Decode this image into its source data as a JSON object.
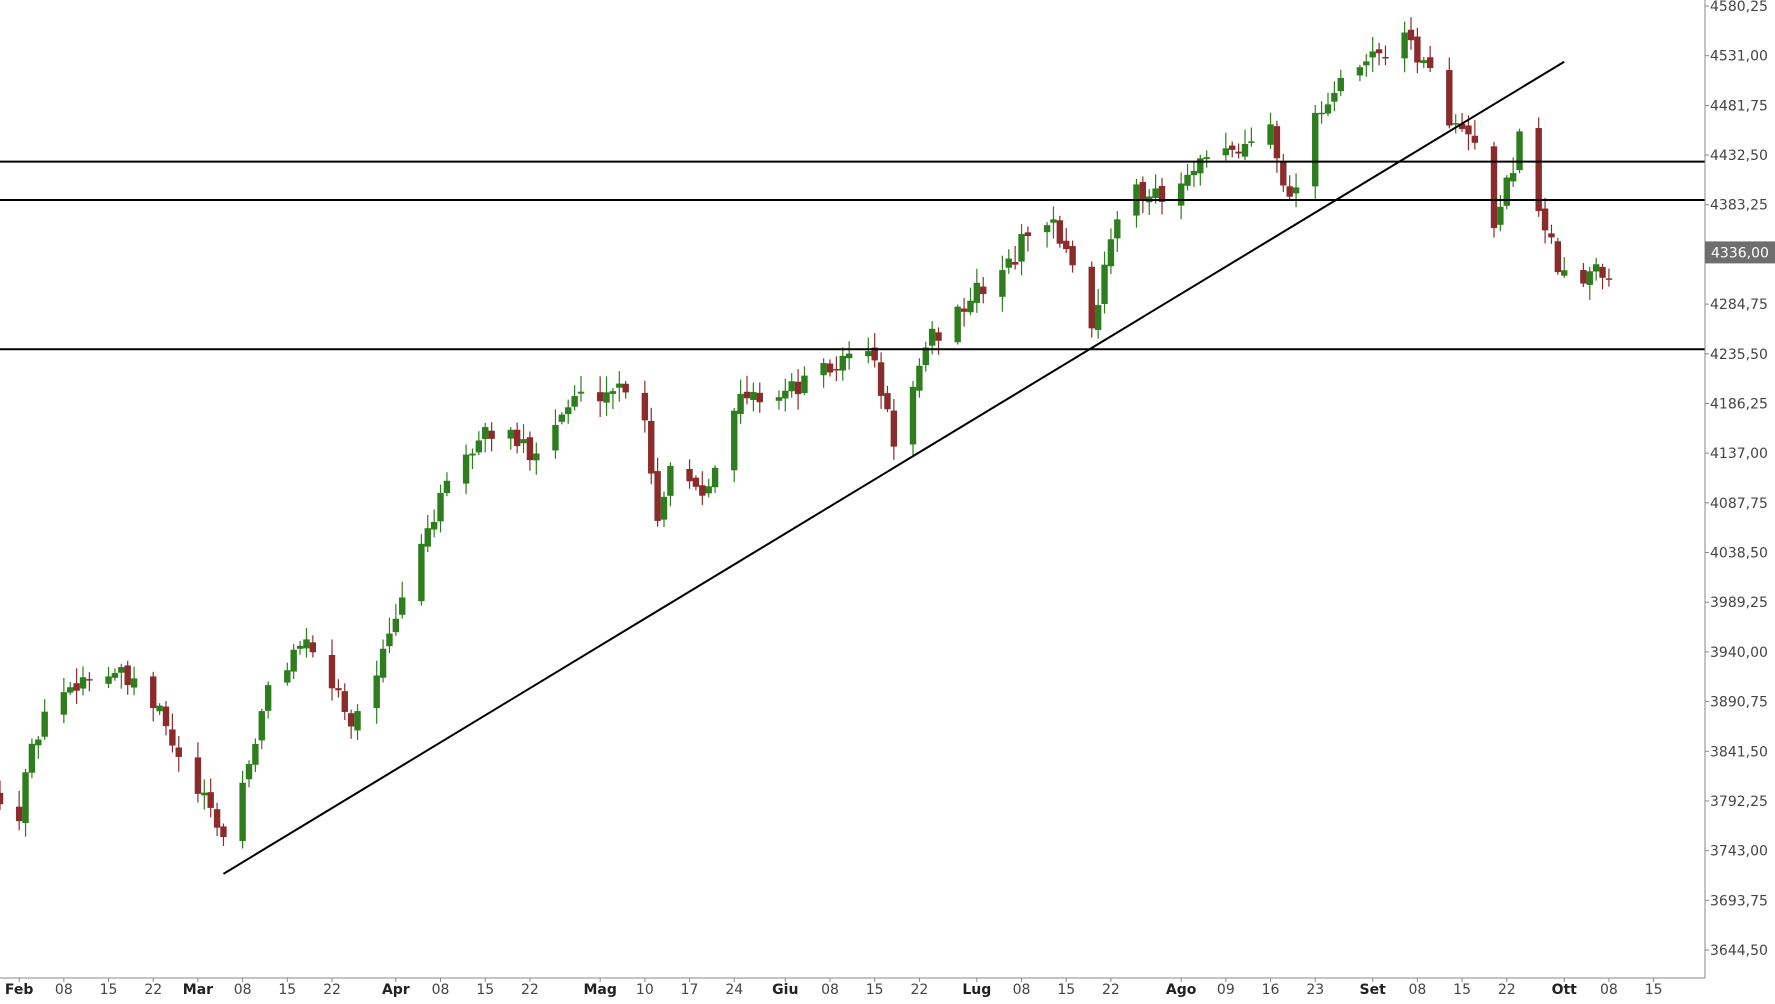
{
  "chart_data": {
    "type": "candlestick",
    "title": "",
    "xlabel": "",
    "ylabel": "",
    "y_axis_position": "right",
    "ylim": [
      3620,
      4580.25
    ],
    "y_ticks": [
      "4580,25",
      "4531,00",
      "4481,75",
      "4432,50",
      "4383,25",
      "4336,00",
      "4284,75",
      "4235,50",
      "4186,25",
      "4137,00",
      "4087,75",
      "4038,50",
      "3989,25",
      "3940,00",
      "3890,75",
      "3841,50",
      "3792,25",
      "3743,00",
      "3693,75",
      "3644,50"
    ],
    "y_tick_values": [
      4580.25,
      4531.0,
      4481.75,
      4432.5,
      4383.25,
      4336.0,
      4284.75,
      4235.5,
      4186.25,
      4137.0,
      4087.75,
      4038.5,
      3989.25,
      3940.0,
      3890.75,
      3841.5,
      3792.25,
      3743.0,
      3693.75,
      3644.5
    ],
    "current_price_label": "4336,00",
    "current_price_value": 4336.0,
    "x_start": "2021-01-29",
    "x_end": "2021-10-16",
    "x_ticks": [
      {
        "label": "Feb",
        "date": "2021-02-01",
        "month": true
      },
      {
        "label": "08",
        "date": "2021-02-08"
      },
      {
        "label": "15",
        "date": "2021-02-15"
      },
      {
        "label": "22",
        "date": "2021-02-22"
      },
      {
        "label": "Mar",
        "date": "2021-03-01",
        "month": true
      },
      {
        "label": "08",
        "date": "2021-03-08"
      },
      {
        "label": "15",
        "date": "2021-03-15"
      },
      {
        "label": "22",
        "date": "2021-03-22"
      },
      {
        "label": "Apr",
        "date": "2021-04-01",
        "month": true
      },
      {
        "label": "08",
        "date": "2021-04-08"
      },
      {
        "label": "15",
        "date": "2021-04-15"
      },
      {
        "label": "22",
        "date": "2021-04-22"
      },
      {
        "label": "Mag",
        "date": "2021-05-03",
        "month": true
      },
      {
        "label": "10",
        "date": "2021-05-10"
      },
      {
        "label": "17",
        "date": "2021-05-17"
      },
      {
        "label": "24",
        "date": "2021-05-24"
      },
      {
        "label": "Giu",
        "date": "2021-06-01",
        "month": true
      },
      {
        "label": "08",
        "date": "2021-06-08"
      },
      {
        "label": "15",
        "date": "2021-06-15"
      },
      {
        "label": "22",
        "date": "2021-06-22"
      },
      {
        "label": "Lug",
        "date": "2021-07-01",
        "month": true
      },
      {
        "label": "08",
        "date": "2021-07-08"
      },
      {
        "label": "15",
        "date": "2021-07-15"
      },
      {
        "label": "22",
        "date": "2021-07-22"
      },
      {
        "label": "Ago",
        "date": "2021-08-02",
        "month": true
      },
      {
        "label": "09",
        "date": "2021-08-09"
      },
      {
        "label": "16",
        "date": "2021-08-16"
      },
      {
        "label": "23",
        "date": "2021-08-23"
      },
      {
        "label": "Set",
        "date": "2021-09-01",
        "month": true
      },
      {
        "label": "08",
        "date": "2021-09-08"
      },
      {
        "label": "15",
        "date": "2021-09-15"
      },
      {
        "label": "22",
        "date": "2021-09-22"
      },
      {
        "label": "Ott",
        "date": "2021-10-01",
        "month": true
      },
      {
        "label": "08",
        "date": "2021-10-08"
      },
      {
        "label": "15",
        "date": "2021-10-15"
      }
    ],
    "colors": {
      "up": "#2e7d1e",
      "down": "#8b2c2c",
      "line": "#000000",
      "axis": "#888888",
      "price_tag": "#6e6e6e",
      "text": "#444444"
    },
    "horizontal_lines": [
      4426.0,
      4388.0,
      4240.0
    ],
    "trendline": {
      "from": {
        "date": "2021-03-05",
        "value": 3720
      },
      "to": {
        "date": "2021-10-01",
        "value": 4525
      }
    },
    "anchors": [
      [
        "2021-01-29",
        3800
      ],
      [
        "2021-02-01",
        3775
      ],
      [
        "2021-02-02",
        3820
      ],
      [
        "2021-02-05",
        3880
      ],
      [
        "2021-02-10",
        3912
      ],
      [
        "2021-02-16",
        3920
      ],
      [
        "2021-02-23",
        3880
      ],
      [
        "2021-02-26",
        3830
      ],
      [
        "2021-03-04",
        3770
      ],
      [
        "2021-03-05",
        3755
      ],
      [
        "2021-03-09",
        3830
      ],
      [
        "2021-03-12",
        3900
      ],
      [
        "2021-03-17",
        3950
      ],
      [
        "2021-03-23",
        3900
      ],
      [
        "2021-03-25",
        3870
      ],
      [
        "2021-03-31",
        3950
      ],
      [
        "2021-04-05",
        4050
      ],
      [
        "2021-04-09",
        4100
      ],
      [
        "2021-04-15",
        4160
      ],
      [
        "2021-04-19",
        4150
      ],
      [
        "2021-04-22",
        4140
      ],
      [
        "2021-04-29",
        4190
      ],
      [
        "2021-05-07",
        4205
      ],
      [
        "2021-05-10",
        4175
      ],
      [
        "2021-05-12",
        4070
      ],
      [
        "2021-05-14",
        4130
      ],
      [
        "2021-05-19",
        4100
      ],
      [
        "2021-05-25",
        4190
      ],
      [
        "2021-06-02",
        4200
      ],
      [
        "2021-06-08",
        4220
      ],
      [
        "2021-06-14",
        4245
      ],
      [
        "2021-06-18",
        4150
      ],
      [
        "2021-06-24",
        4250
      ],
      [
        "2021-06-30",
        4290
      ],
      [
        "2021-07-07",
        4330
      ],
      [
        "2021-07-09",
        4360
      ],
      [
        "2021-07-12",
        4370
      ],
      [
        "2021-07-16",
        4330
      ],
      [
        "2021-07-19",
        4255
      ],
      [
        "2021-07-21",
        4330
      ],
      [
        "2021-07-26",
        4405
      ],
      [
        "2021-07-30",
        4385
      ],
      [
        "2021-08-06",
        4425
      ],
      [
        "2021-08-12",
        4440
      ],
      [
        "2021-08-16",
        4465
      ],
      [
        "2021-08-19",
        4385
      ],
      [
        "2021-08-23",
        4475
      ],
      [
        "2021-08-27",
        4500
      ],
      [
        "2021-09-02",
        4535
      ],
      [
        "2021-09-07",
        4545
      ],
      [
        "2021-09-10",
        4510
      ],
      [
        "2021-09-14",
        4460
      ],
      [
        "2021-09-17",
        4440
      ],
      [
        "2021-09-20",
        4350
      ],
      [
        "2021-09-24",
        4450
      ],
      [
        "2021-09-28",
        4360
      ],
      [
        "2021-09-30",
        4320
      ],
      [
        "2021-10-04",
        4300
      ],
      [
        "2021-10-06",
        4325
      ],
      [
        "2021-10-08",
        4315
      ]
    ],
    "random_seed": 42
  }
}
